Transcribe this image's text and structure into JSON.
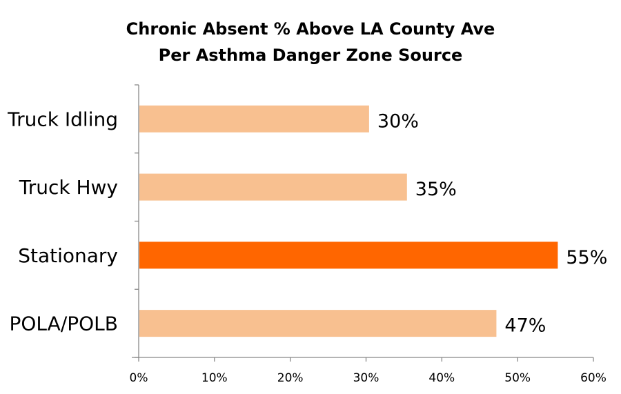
{
  "chart_data": {
    "type": "bar",
    "orientation": "horizontal",
    "title": [
      "Chronic Absent % Above LA County Ave",
      "Per Asthma Danger Zone Source"
    ],
    "categories": [
      "Truck Idling",
      "Truck Hwy",
      "Stationary",
      "POLA/POLB"
    ],
    "values": [
      30.4,
      35.4,
      55.3,
      47.2
    ],
    "data_labels": [
      "30%",
      "35%",
      "55%",
      "47%"
    ],
    "colors": [
      "#F8C090",
      "#F8C090",
      "#FF6600",
      "#F8C090"
    ],
    "xlim": [
      0,
      60
    ],
    "xticks": [
      0,
      10,
      20,
      30,
      40,
      50,
      60
    ],
    "xtick_labels": [
      "0%",
      "10%",
      "20%",
      "30%",
      "40%",
      "50%",
      "60%"
    ],
    "xlabel": "",
    "ylabel": "",
    "grid": false,
    "legend": "none"
  }
}
